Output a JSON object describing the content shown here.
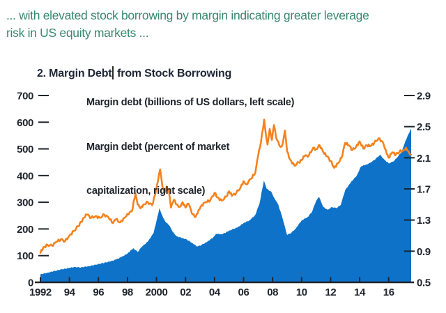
{
  "header": {
    "lead_lines": [
      "... with elevated stock borrowing by margin indicating greater leverage",
      "risk in US equity markets ..."
    ]
  },
  "figure": {
    "title_before_caret": "2. Margin Debt",
    "title_after_caret": " from Stock Borrowing"
  },
  "legend": {
    "items": [
      {
        "swatch": "blue-bar",
        "label": "Margin debt (billions of US dollars, left scale)"
      },
      {
        "swatch": "orange-line",
        "label_line1": "Margin debt (percent of market",
        "label_line2": "capitalization, right scale)"
      }
    ]
  },
  "colors": {
    "area_blue": "#0e72c8",
    "line_orange": "#f5821e",
    "axis_dark": "#20242c",
    "lead_green": "#38886e",
    "title_dark": "#1f2636"
  },
  "chart_data": {
    "type": "combo-area-line",
    "title": "2. Margin Debt from Stock Borrowing",
    "grid": "off",
    "legend_position": "top-left-inside",
    "axes": {
      "x": {
        "range": [
          1992,
          2017.55
        ],
        "tick_years": [
          1992,
          1994,
          1996,
          1998,
          2000,
          2002,
          2004,
          2006,
          2008,
          2010,
          2012,
          2014,
          2016
        ],
        "tick_labels": [
          "1992",
          "94",
          "96",
          "98",
          "2000",
          "02",
          "04",
          "06",
          "08",
          "10",
          "12",
          "14",
          "16"
        ]
      },
      "left": {
        "range": [
          0,
          700
        ],
        "tick_values": [
          0,
          100,
          200,
          300,
          400,
          500,
          600,
          700
        ],
        "tick_labels": [
          "0",
          "100",
          "200",
          "300",
          "400",
          "500",
          "600",
          "700"
        ]
      },
      "right": {
        "range": [
          0.5,
          2.9
        ],
        "tick_values": [
          0.5,
          0.9,
          1.3,
          1.7,
          2.1,
          2.5,
          2.9
        ],
        "tick_labels": [
          "0.5",
          "0.9",
          "1.3",
          "1.7",
          "2.1",
          "2.5",
          "2.9"
        ]
      }
    },
    "series": [
      {
        "name": "Margin debt (billions of US dollars, left scale)",
        "type": "area",
        "axis": "left",
        "unit": "billions of US dollars",
        "points": [
          [
            1992.0,
            30
          ],
          [
            1992.5,
            36
          ],
          [
            1993.0,
            43
          ],
          [
            1993.5,
            49
          ],
          [
            1994.0,
            54
          ],
          [
            1994.3,
            57
          ],
          [
            1994.8,
            56
          ],
          [
            1995.3,
            60
          ],
          [
            1995.8,
            66
          ],
          [
            1996.3,
            72
          ],
          [
            1996.8,
            78
          ],
          [
            1997.2,
            85
          ],
          [
            1997.6,
            95
          ],
          [
            1998.0,
            108
          ],
          [
            1998.4,
            128
          ],
          [
            1998.7,
            114
          ],
          [
            1999.0,
            134
          ],
          [
            1999.4,
            152
          ],
          [
            1999.8,
            185
          ],
          [
            2000.0,
            230
          ],
          [
            2000.2,
            278
          ],
          [
            2000.4,
            250
          ],
          [
            2000.6,
            228
          ],
          [
            2000.9,
            212
          ],
          [
            2001.1,
            190
          ],
          [
            2001.4,
            172
          ],
          [
            2001.8,
            166
          ],
          [
            2002.1,
            160
          ],
          [
            2002.5,
            146
          ],
          [
            2002.8,
            134
          ],
          [
            2003.1,
            140
          ],
          [
            2003.5,
            152
          ],
          [
            2003.9,
            168
          ],
          [
            2004.1,
            182
          ],
          [
            2004.5,
            180
          ],
          [
            2004.9,
            190
          ],
          [
            2005.2,
            198
          ],
          [
            2005.6,
            206
          ],
          [
            2006.0,
            222
          ],
          [
            2006.4,
            232
          ],
          [
            2006.8,
            252
          ],
          [
            2007.1,
            295
          ],
          [
            2007.4,
            381
          ],
          [
            2007.6,
            350
          ],
          [
            2007.9,
            340
          ],
          [
            2008.1,
            318
          ],
          [
            2008.4,
            290
          ],
          [
            2008.7,
            238
          ],
          [
            2009.0,
            177
          ],
          [
            2009.3,
            186
          ],
          [
            2009.6,
            202
          ],
          [
            2010.0,
            232
          ],
          [
            2010.4,
            244
          ],
          [
            2010.7,
            262
          ],
          [
            2011.0,
            305
          ],
          [
            2011.2,
            320
          ],
          [
            2011.5,
            282
          ],
          [
            2011.8,
            272
          ],
          [
            2012.1,
            282
          ],
          [
            2012.4,
            278
          ],
          [
            2012.7,
            290
          ],
          [
            2013.0,
            345
          ],
          [
            2013.4,
            375
          ],
          [
            2013.8,
            400
          ],
          [
            2014.1,
            435
          ],
          [
            2014.5,
            442
          ],
          [
            2014.8,
            450
          ],
          [
            2015.1,
            462
          ],
          [
            2015.4,
            478
          ],
          [
            2015.7,
            460
          ],
          [
            2016.0,
            446
          ],
          [
            2016.3,
            452
          ],
          [
            2016.6,
            468
          ],
          [
            2016.9,
            490
          ],
          [
            2017.1,
            520
          ],
          [
            2017.3,
            548
          ],
          [
            2017.55,
            576
          ]
        ]
      },
      {
        "name": "Margin debt (percent of market capitalization, right scale)",
        "type": "line",
        "axis": "right",
        "unit": "percent of market capitalization",
        "points": [
          [
            1992.0,
            0.88
          ],
          [
            1992.2,
            0.95
          ],
          [
            1992.5,
            0.98
          ],
          [
            1992.8,
            0.97
          ],
          [
            1993.1,
            1.02
          ],
          [
            1993.4,
            1.05
          ],
          [
            1993.7,
            1.03
          ],
          [
            1994.0,
            1.1
          ],
          [
            1994.3,
            1.16
          ],
          [
            1994.6,
            1.22
          ],
          [
            1995.0,
            1.33
          ],
          [
            1995.2,
            1.37
          ],
          [
            1995.5,
            1.33
          ],
          [
            1995.8,
            1.35
          ],
          [
            1996.1,
            1.33
          ],
          [
            1996.4,
            1.37
          ],
          [
            1996.7,
            1.33
          ],
          [
            1997.0,
            1.26
          ],
          [
            1997.2,
            1.31
          ],
          [
            1997.5,
            1.27
          ],
          [
            1997.8,
            1.33
          ],
          [
            1998.0,
            1.38
          ],
          [
            1998.3,
            1.41
          ],
          [
            1998.55,
            1.64
          ],
          [
            1998.7,
            1.5
          ],
          [
            1998.9,
            1.45
          ],
          [
            1999.1,
            1.5
          ],
          [
            1999.4,
            1.53
          ],
          [
            1999.7,
            1.49
          ],
          [
            1999.9,
            1.62
          ],
          [
            2000.1,
            1.8
          ],
          [
            2000.25,
            1.95
          ],
          [
            2000.4,
            1.74
          ],
          [
            2000.55,
            1.65
          ],
          [
            2000.7,
            1.73
          ],
          [
            2000.85,
            1.68
          ],
          [
            2001.0,
            1.46
          ],
          [
            2001.2,
            1.56
          ],
          [
            2001.4,
            1.5
          ],
          [
            2001.6,
            1.47
          ],
          [
            2001.8,
            1.53
          ],
          [
            2002.0,
            1.46
          ],
          [
            2002.2,
            1.51
          ],
          [
            2002.5,
            1.37
          ],
          [
            2002.7,
            1.34
          ],
          [
            2002.9,
            1.43
          ],
          [
            2003.1,
            1.49
          ],
          [
            2003.4,
            1.53
          ],
          [
            2003.7,
            1.55
          ],
          [
            2004.0,
            1.65
          ],
          [
            2004.2,
            1.59
          ],
          [
            2004.5,
            1.55
          ],
          [
            2004.8,
            1.6
          ],
          [
            2005.0,
            1.67
          ],
          [
            2005.2,
            1.61
          ],
          [
            2005.5,
            1.65
          ],
          [
            2005.8,
            1.72
          ],
          [
            2006.0,
            1.8
          ],
          [
            2006.2,
            1.76
          ],
          [
            2006.5,
            1.83
          ],
          [
            2006.8,
            1.9
          ],
          [
            2007.0,
            2.12
          ],
          [
            2007.2,
            2.3
          ],
          [
            2007.42,
            2.59
          ],
          [
            2007.55,
            2.38
          ],
          [
            2007.65,
            2.27
          ],
          [
            2007.8,
            2.47
          ],
          [
            2007.95,
            2.33
          ],
          [
            2008.1,
            2.52
          ],
          [
            2008.25,
            2.35
          ],
          [
            2008.4,
            2.3
          ],
          [
            2008.55,
            2.24
          ],
          [
            2008.7,
            2.28
          ],
          [
            2008.85,
            2.45
          ],
          [
            2009.0,
            2.18
          ],
          [
            2009.2,
            2.08
          ],
          [
            2009.5,
            2.0
          ],
          [
            2009.8,
            2.04
          ],
          [
            2010.0,
            2.07
          ],
          [
            2010.2,
            2.12
          ],
          [
            2010.5,
            2.13
          ],
          [
            2010.8,
            2.23
          ],
          [
            2011.0,
            2.21
          ],
          [
            2011.25,
            2.26
          ],
          [
            2011.5,
            2.17
          ],
          [
            2011.75,
            2.12
          ],
          [
            2012.0,
            2.06
          ],
          [
            2012.25,
            1.97
          ],
          [
            2012.5,
            2.03
          ],
          [
            2012.75,
            2.1
          ],
          [
            2013.0,
            2.29
          ],
          [
            2013.25,
            2.26
          ],
          [
            2013.5,
            2.2
          ],
          [
            2013.75,
            2.24
          ],
          [
            2014.0,
            2.31
          ],
          [
            2014.25,
            2.22
          ],
          [
            2014.5,
            2.26
          ],
          [
            2014.75,
            2.25
          ],
          [
            2015.0,
            2.29
          ],
          [
            2015.3,
            2.35
          ],
          [
            2015.6,
            2.3
          ],
          [
            2015.8,
            2.2
          ],
          [
            2016.0,
            2.1
          ],
          [
            2016.25,
            2.17
          ],
          [
            2016.5,
            2.14
          ],
          [
            2016.75,
            2.18
          ],
          [
            2017.0,
            2.19
          ],
          [
            2017.2,
            2.23
          ],
          [
            2017.4,
            2.17
          ],
          [
            2017.55,
            2.14
          ]
        ]
      }
    ]
  }
}
